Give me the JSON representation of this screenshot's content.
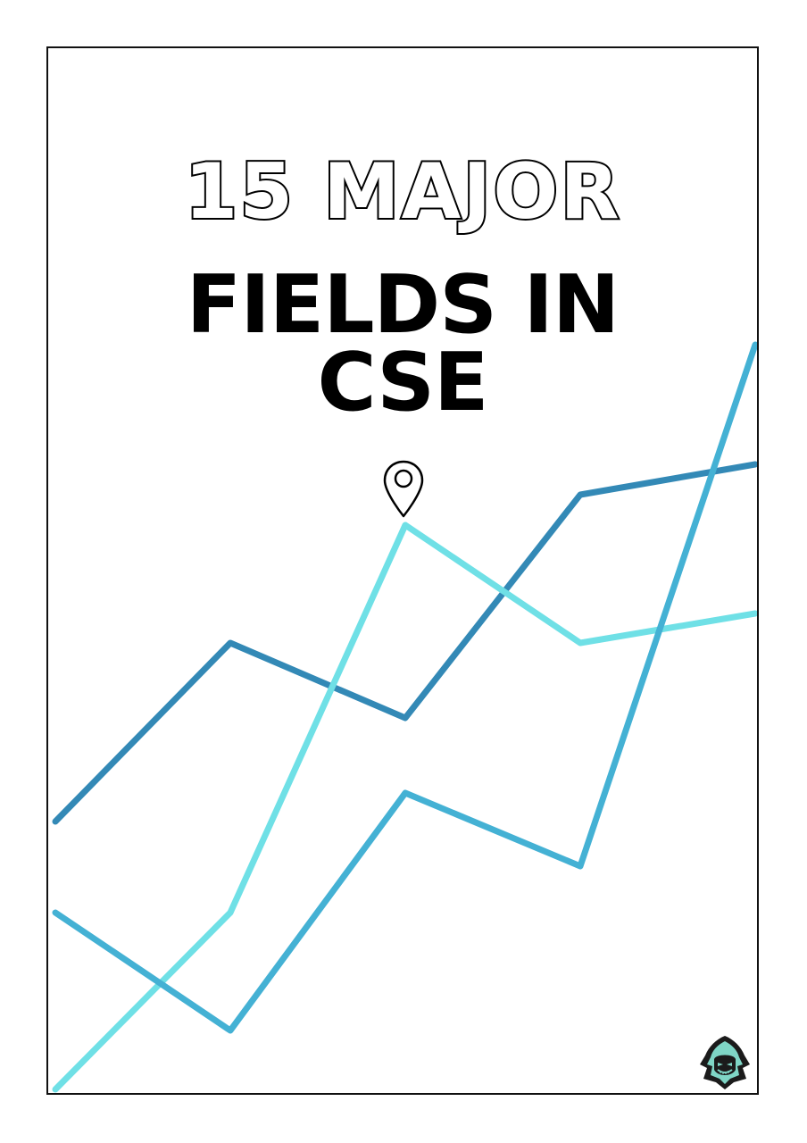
{
  "title": {
    "line1": "15 MAJOR",
    "line2": "FIELDS IN",
    "line3": "CSE"
  },
  "icons": {
    "pin": "map-pin-icon",
    "logo": "hooded-figure-logo-icon"
  },
  "colors": {
    "line_dark_blue": "#3389b6",
    "line_light_cyan": "#6fe0e6",
    "line_mid_blue": "#44b1d4",
    "text": "#000000",
    "border": "#111111"
  }
}
